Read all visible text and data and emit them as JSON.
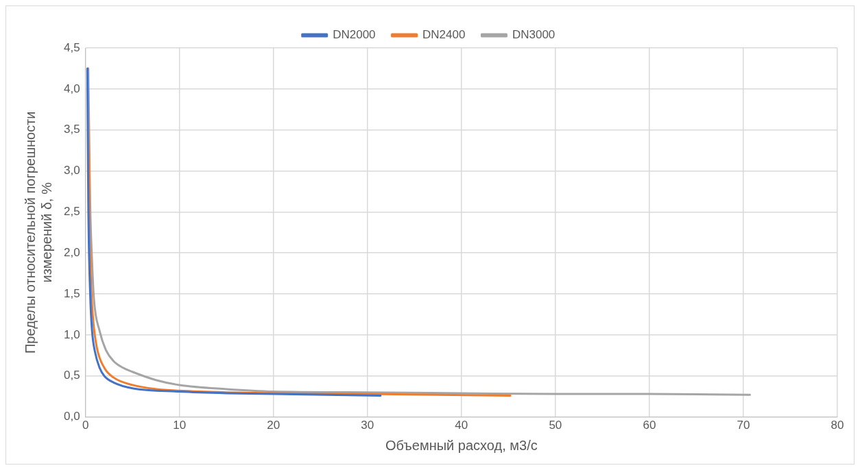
{
  "chart_data": {
    "type": "line",
    "xlabel": "Объемный расход, м3/с",
    "ylabel": "Пределы относительной погрешности измерений δ, %",
    "xlim": [
      0,
      80
    ],
    "xticks": [
      0,
      10,
      20,
      30,
      40,
      50,
      60,
      70,
      80
    ],
    "ylim": [
      0,
      4.5
    ],
    "yticks": [
      {
        "value": 0,
        "label": "0,0"
      },
      {
        "value": 0.5,
        "label": "0,5"
      },
      {
        "value": 1,
        "label": "1,0"
      },
      {
        "value": 1.5,
        "label": "1,5"
      },
      {
        "value": 2,
        "label": "2,0"
      },
      {
        "value": 2.5,
        "label": "2,5"
      },
      {
        "value": 3,
        "label": "3,0"
      },
      {
        "value": 3.5,
        "label": "3,5"
      },
      {
        "value": 4,
        "label": "4,0"
      },
      {
        "value": 4.5,
        "label": "4,5"
      }
    ],
    "grid": true,
    "legend": "top",
    "marker": "none",
    "line_style": "solid",
    "series": [
      {
        "name": "DN2000",
        "color": "#4472c4",
        "x": [
          0.2,
          0.3,
          0.5,
          0.7,
          1,
          1.5,
          2,
          3,
          5,
          10,
          15,
          20,
          31.4
        ],
        "values": [
          4.25,
          2.6,
          1.5,
          1.05,
          0.8,
          0.6,
          0.5,
          0.42,
          0.35,
          0.31,
          0.29,
          0.28,
          0.26
        ]
      },
      {
        "name": "DN2400",
        "color": "#ed7d31",
        "x": [
          0.25,
          0.4,
          0.6,
          0.8,
          1.2,
          2,
          3,
          5,
          7.5,
          10,
          15,
          20,
          30,
          45.2
        ],
        "values": [
          4.25,
          2.5,
          1.6,
          1.2,
          0.85,
          0.6,
          0.48,
          0.39,
          0.34,
          0.32,
          0.3,
          0.29,
          0.28,
          0.26
        ]
      },
      {
        "name": "DN3000",
        "color": "#a5a5a5",
        "x": [
          0.3,
          0.5,
          0.7,
          0.9,
          1.5,
          2.2,
          3,
          4,
          5,
          7.5,
          10,
          15,
          20,
          30,
          40,
          50,
          60,
          70.7
        ],
        "values": [
          4.25,
          2.6,
          1.9,
          1.44,
          1.05,
          0.81,
          0.68,
          0.6,
          0.55,
          0.45,
          0.39,
          0.34,
          0.31,
          0.3,
          0.29,
          0.28,
          0.28,
          0.27
        ]
      }
    ]
  }
}
